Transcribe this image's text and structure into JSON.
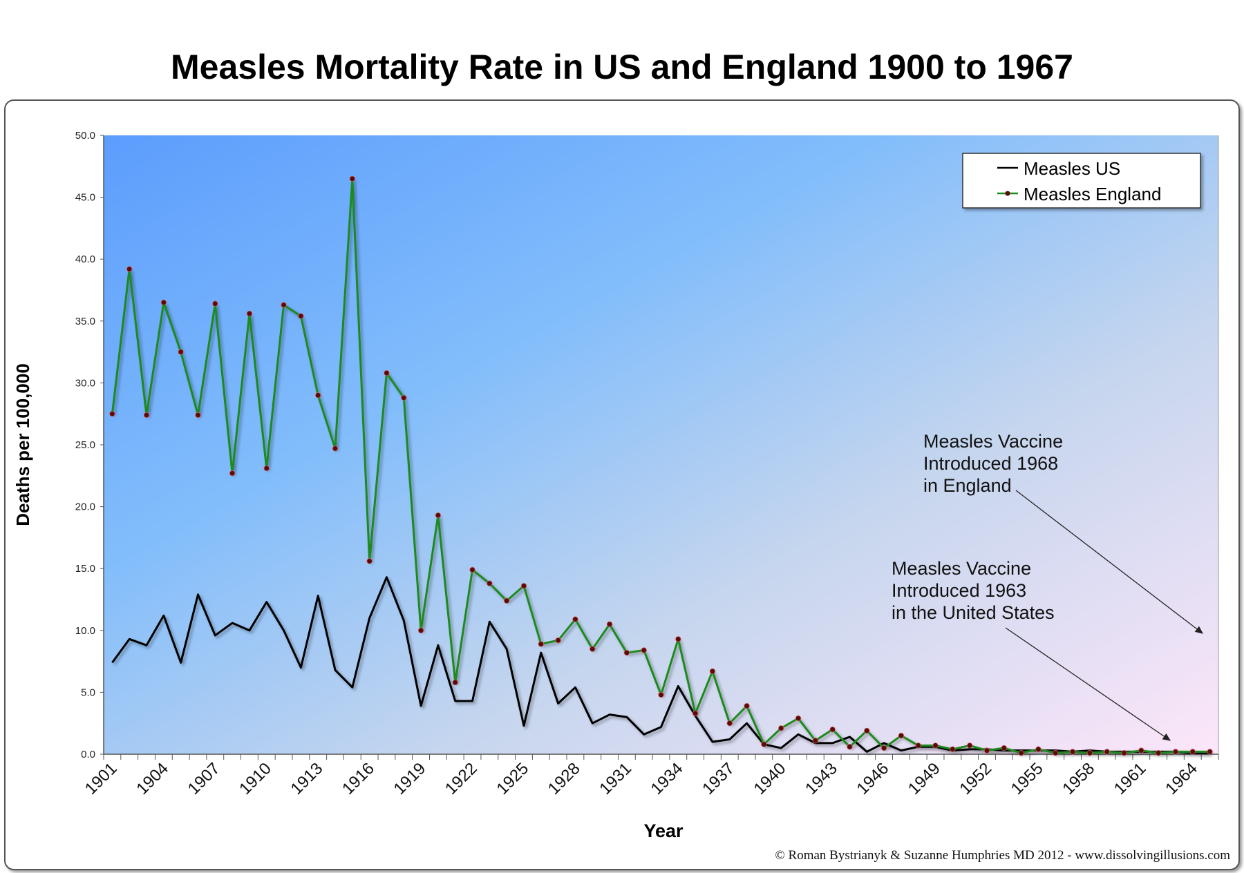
{
  "chart_data": {
    "type": "line",
    "title": "Measles Mortality Rate in US and England 1900 to 1967",
    "xlabel": "Year",
    "ylabel": "Deaths per 100,000",
    "ylim": [
      0,
      50
    ],
    "yticks": [
      "0.0",
      "5.0",
      "10.0",
      "15.0",
      "20.0",
      "25.0",
      "30.0",
      "35.0",
      "40.0",
      "45.0",
      "50.0"
    ],
    "x": [
      1901,
      1902,
      1903,
      1904,
      1905,
      1906,
      1907,
      1908,
      1909,
      1910,
      1911,
      1912,
      1913,
      1914,
      1915,
      1916,
      1917,
      1918,
      1919,
      1920,
      1921,
      1922,
      1923,
      1924,
      1925,
      1926,
      1927,
      1928,
      1929,
      1930,
      1931,
      1932,
      1933,
      1934,
      1935,
      1936,
      1937,
      1938,
      1939,
      1940,
      1941,
      1942,
      1943,
      1944,
      1945,
      1946,
      1947,
      1948,
      1949,
      1950,
      1951,
      1952,
      1953,
      1954,
      1955,
      1956,
      1957,
      1958,
      1959,
      1960,
      1961,
      1962,
      1963,
      1964,
      1965
    ],
    "xtick_labels": [
      "1901",
      "1904",
      "1907",
      "1910",
      "1913",
      "1916",
      "1919",
      "1922",
      "1925",
      "1928",
      "1931",
      "1934",
      "1937",
      "1940",
      "1943",
      "1946",
      "1949",
      "1952",
      "1955",
      "1958",
      "1961",
      "1964"
    ],
    "legend_position": "top-right",
    "series": [
      {
        "name": "Measles US",
        "color": "#000000",
        "values": [
          7.4,
          9.3,
          8.8,
          11.2,
          7.4,
          12.9,
          9.6,
          10.6,
          10.0,
          12.3,
          10.0,
          7.0,
          12.8,
          6.8,
          5.4,
          11.0,
          14.3,
          10.8,
          3.9,
          8.8,
          4.3,
          4.3,
          10.7,
          8.5,
          2.3,
          8.2,
          4.1,
          5.4,
          2.5,
          3.2,
          3.0,
          1.6,
          2.2,
          5.5,
          3.1,
          1.0,
          1.2,
          2.5,
          0.8,
          0.5,
          1.6,
          0.9,
          0.9,
          1.4,
          0.2,
          0.9,
          0.3,
          0.6,
          0.6,
          0.3,
          0.4,
          0.4,
          0.3,
          0.3,
          0.3,
          0.3,
          0.2,
          0.3,
          0.2,
          0.2,
          0.2,
          0.2,
          0.2,
          0.1,
          0.1
        ]
      },
      {
        "name": "Measles England",
        "color": "#1a8a1a",
        "marker_color": "#5a0a0a",
        "values": [
          27.5,
          39.2,
          27.4,
          36.5,
          32.5,
          27.4,
          36.4,
          22.7,
          35.6,
          23.1,
          36.3,
          35.4,
          29.0,
          24.7,
          46.5,
          15.6,
          30.8,
          28.8,
          10.0,
          19.3,
          5.8,
          14.9,
          13.8,
          12.4,
          13.6,
          8.9,
          9.2,
          10.9,
          8.5,
          10.5,
          8.2,
          8.4,
          4.8,
          9.3,
          3.3,
          6.7,
          2.5,
          3.9,
          0.8,
          2.1,
          2.9,
          1.1,
          2.0,
          0.6,
          1.9,
          0.5,
          1.5,
          0.7,
          0.7,
          0.4,
          0.7,
          0.3,
          0.5,
          0.1,
          0.4,
          0.1,
          0.2,
          0.1,
          0.2,
          0.1,
          0.3,
          0.1,
          0.2,
          0.2,
          0.2
        ]
      }
    ],
    "annotations": [
      {
        "lines": [
          "Measles Vaccine",
          "Introduced 1968",
          "in England"
        ]
      },
      {
        "lines": [
          "Measles Vaccine",
          "Introduced 1963",
          "in the United States"
        ]
      }
    ]
  },
  "credit": "© Roman Bystrianyk & Suzanne Humphries MD 2012 - www.dissolvingillusions.com"
}
